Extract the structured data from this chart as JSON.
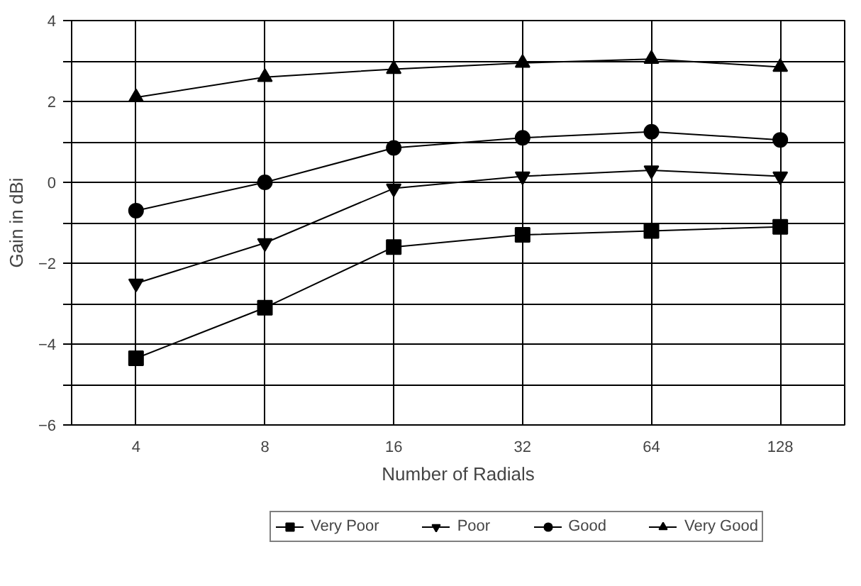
{
  "chart_data": {
    "type": "line",
    "xlabel": "Number of Radials",
    "ylabel": "Gain in dBi",
    "categories": [
      "4",
      "8",
      "16",
      "32",
      "64",
      "128"
    ],
    "series": [
      {
        "name": "Very Poor",
        "color": "#000000",
        "marker": "square",
        "values": [
          -4.35,
          -3.1,
          -1.6,
          -1.3,
          -1.2,
          -1.1
        ]
      },
      {
        "name": "Poor",
        "color": "#000000",
        "marker": "triangle",
        "values": [
          -2.5,
          -1.5,
          -0.15,
          0.15,
          0.3,
          0.15
        ]
      },
      {
        "name": "Good",
        "color": "#000000",
        "marker": "circle",
        "values": [
          -0.7,
          0.0,
          0.85,
          1.1,
          1.25,
          1.05
        ]
      },
      {
        "name": "Very Good",
        "color": "#000000",
        "marker": "triangle",
        "values": [
          2.1,
          2.6,
          2.8,
          2.95,
          3.05,
          2.85
        ]
      }
    ],
    "ylim": [
      -6,
      4
    ],
    "yticks": [
      -6,
      {
        "value": -5,
        "label": null
      },
      -4,
      {
        "value": -3,
        "label": null
      },
      -2,
      {
        "value": -1,
        "label": null
      },
      0,
      {
        "value": 1,
        "label": null
      },
      2,
      {
        "value": 3,
        "label": null
      },
      4
    ],
    "grid": true,
    "legend": "bottom",
    "line_style": "solid"
  }
}
